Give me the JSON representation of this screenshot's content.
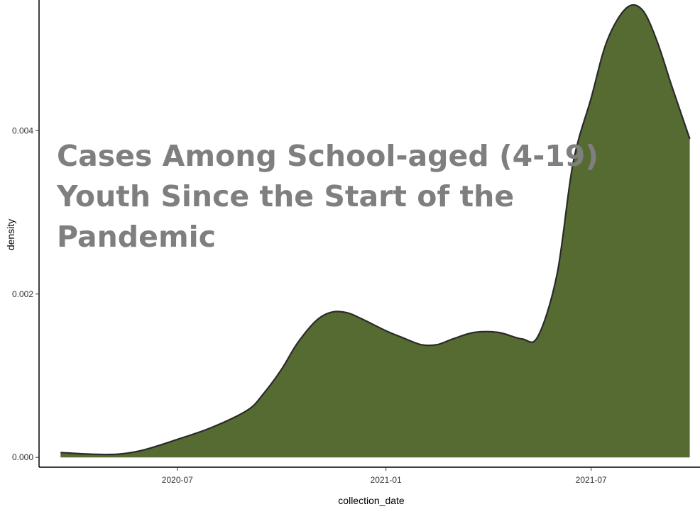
{
  "title_lines": [
    "Cases Among School-aged (4-19)",
    "Youth Since the Start of the",
    "Pandemic"
  ],
  "chart_data": {
    "type": "area",
    "title": "Cases Among School-aged (4-19) Youth Since the Start of the Pandemic",
    "xlabel": "collection_date",
    "ylabel": "density",
    "x_ticks": [
      "2020-07",
      "2021-01",
      "2021-07"
    ],
    "y_ticks": [
      "0.000",
      "0.002",
      "0.004"
    ],
    "y_tick_values": [
      0,
      0.002,
      0.004
    ],
    "xlim": [
      "2020-03-01",
      "2021-10-05"
    ],
    "ylim": [
      -0.00012,
      0.0056
    ],
    "grid": false,
    "fill_color": "#566b31",
    "line_color": "#2a2a2a",
    "x": [
      "2020-03-20",
      "2020-04-15",
      "2020-05-10",
      "2020-06-01",
      "2020-07-01",
      "2020-08-01",
      "2020-09-01",
      "2020-09-15",
      "2020-10-01",
      "2020-10-15",
      "2020-11-01",
      "2020-11-15",
      "2020-11-28",
      "2020-12-10",
      "2021-01-01",
      "2021-01-15",
      "2021-02-01",
      "2021-02-15",
      "2021-03-01",
      "2021-03-20",
      "2021-04-10",
      "2021-05-01",
      "2021-05-15",
      "2021-06-01",
      "2021-06-15",
      "2021-07-01",
      "2021-07-15",
      "2021-08-01",
      "2021-08-15",
      "2021-08-28",
      "2021-09-10",
      "2021-09-26"
    ],
    "y": [
      6e-05,
      4e-05,
      4e-05,
      9e-05,
      0.00022,
      0.00037,
      0.00058,
      0.00078,
      0.00108,
      0.0014,
      0.00168,
      0.00178,
      0.00177,
      0.0017,
      0.00155,
      0.00147,
      0.00138,
      0.00138,
      0.00145,
      0.00153,
      0.00153,
      0.00145,
      0.00148,
      0.00225,
      0.0036,
      0.0044,
      0.0051,
      0.0055,
      0.00548,
      0.0051,
      0.00455,
      0.0039
    ]
  }
}
